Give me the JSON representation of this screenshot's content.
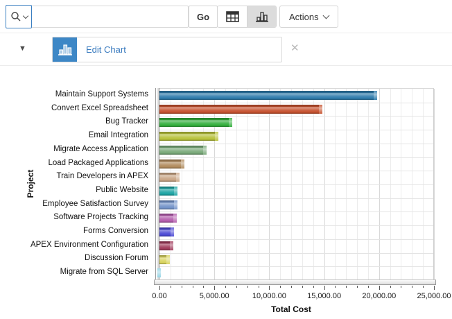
{
  "toolbar": {
    "search": {
      "value": "",
      "placeholder": ""
    },
    "go_label": "Go",
    "actions_label": "Actions"
  },
  "subheader": {
    "edit_chart_label": "Edit Chart"
  },
  "icons": {
    "collapse": "▼",
    "close": "✕"
  },
  "chart_data": {
    "type": "bar",
    "orientation": "horizontal",
    "title": "",
    "xlabel": "Total Cost",
    "ylabel": "Project",
    "xlim": [
      0,
      25000
    ],
    "grid": true,
    "legend": false,
    "x_tick_labels": [
      "0.00",
      "5,000.00",
      "10,000.00",
      "15,000.00",
      "20,000.00",
      "25,000.00"
    ],
    "minor_tick_step": 1000,
    "categories": [
      "Maintain Support Systems",
      "Convert Excel Spreadsheet",
      "Bug Tracker",
      "Email Integration",
      "Migrate Access Application",
      "Load Packaged Applications",
      "Train Developers in APEX",
      "Public Website",
      "Employee Satisfaction Survey",
      "Software Projects Tracking",
      "Forms Conversion",
      "APEX Environment Configuration",
      "Discussion Forum",
      "Migrate from SQL Server"
    ],
    "values": [
      19800,
      14850,
      6600,
      5350,
      4300,
      2250,
      1800,
      1650,
      1650,
      1550,
      1300,
      1250,
      950,
      150
    ],
    "colors": [
      "#2e7bab",
      "#c6512e",
      "#33ae3c",
      "#b7c13a",
      "#78a878",
      "#b08a5c",
      "#c9a585",
      "#1ba3a3",
      "#7292c8",
      "#b35cac",
      "#4a48d4",
      "#a03a5a",
      "#d8d45e",
      "#8fd2e4"
    ]
  }
}
